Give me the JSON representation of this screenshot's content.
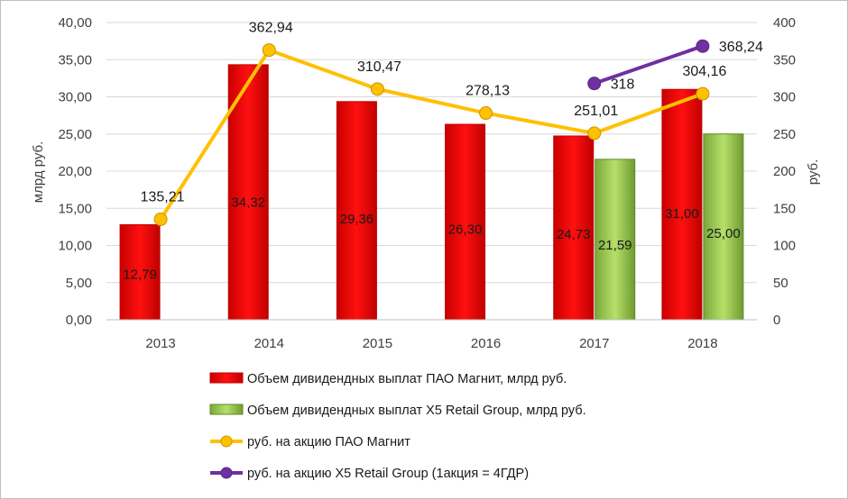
{
  "chart_data": {
    "type": "bar",
    "categories": [
      "2013",
      "2014",
      "2015",
      "2016",
      "2017",
      "2018"
    ],
    "ylabel": "млрд руб.",
    "y2label": "руб.",
    "ylim": [
      0,
      40
    ],
    "y2lim": [
      0,
      400
    ],
    "yticks": [
      "0,00",
      "5,00",
      "10,00",
      "15,00",
      "20,00",
      "25,00",
      "30,00",
      "35,00",
      "40,00"
    ],
    "y2ticks": [
      "0",
      "50",
      "100",
      "150",
      "200",
      "250",
      "300",
      "350",
      "400"
    ],
    "grid": true,
    "legend_position": "bottom",
    "bar_series": [
      {
        "name": "Объем дивидендных выплат ПАО Магнит, млрд руб.",
        "values": [
          12.79,
          34.32,
          29.36,
          26.3,
          24.73,
          31.0
        ],
        "labels": [
          "12,79",
          "34,32",
          "29,36",
          "26,30",
          "24,73",
          "31,00"
        ],
        "color": "#ff0000"
      },
      {
        "name": "Объем дивидендных выплат X5 Retail Group, млрд руб.",
        "values": [
          null,
          null,
          null,
          null,
          21.59,
          25.0
        ],
        "labels": [
          null,
          null,
          null,
          null,
          "21,59",
          "25,00"
        ],
        "color": "#92d050"
      }
    ],
    "line_series": [
      {
        "name": "руб. на акцию ПАО Магнит",
        "values": [
          135.21,
          362.94,
          310.47,
          278.13,
          251.01,
          304.16
        ],
        "labels": [
          "135,21",
          "362,94",
          "310,47",
          "278,13",
          "251,01",
          "304,16"
        ],
        "color": "#ffc000",
        "axis": "secondary"
      },
      {
        "name": "руб. на акцию X5 Retail Group (1акция = 4ГДР)",
        "values": [
          null,
          null,
          null,
          null,
          318,
          368.24
        ],
        "labels": [
          null,
          null,
          null,
          null,
          "318",
          "368,24"
        ],
        "color": "#7030a0",
        "axis": "secondary"
      }
    ]
  }
}
